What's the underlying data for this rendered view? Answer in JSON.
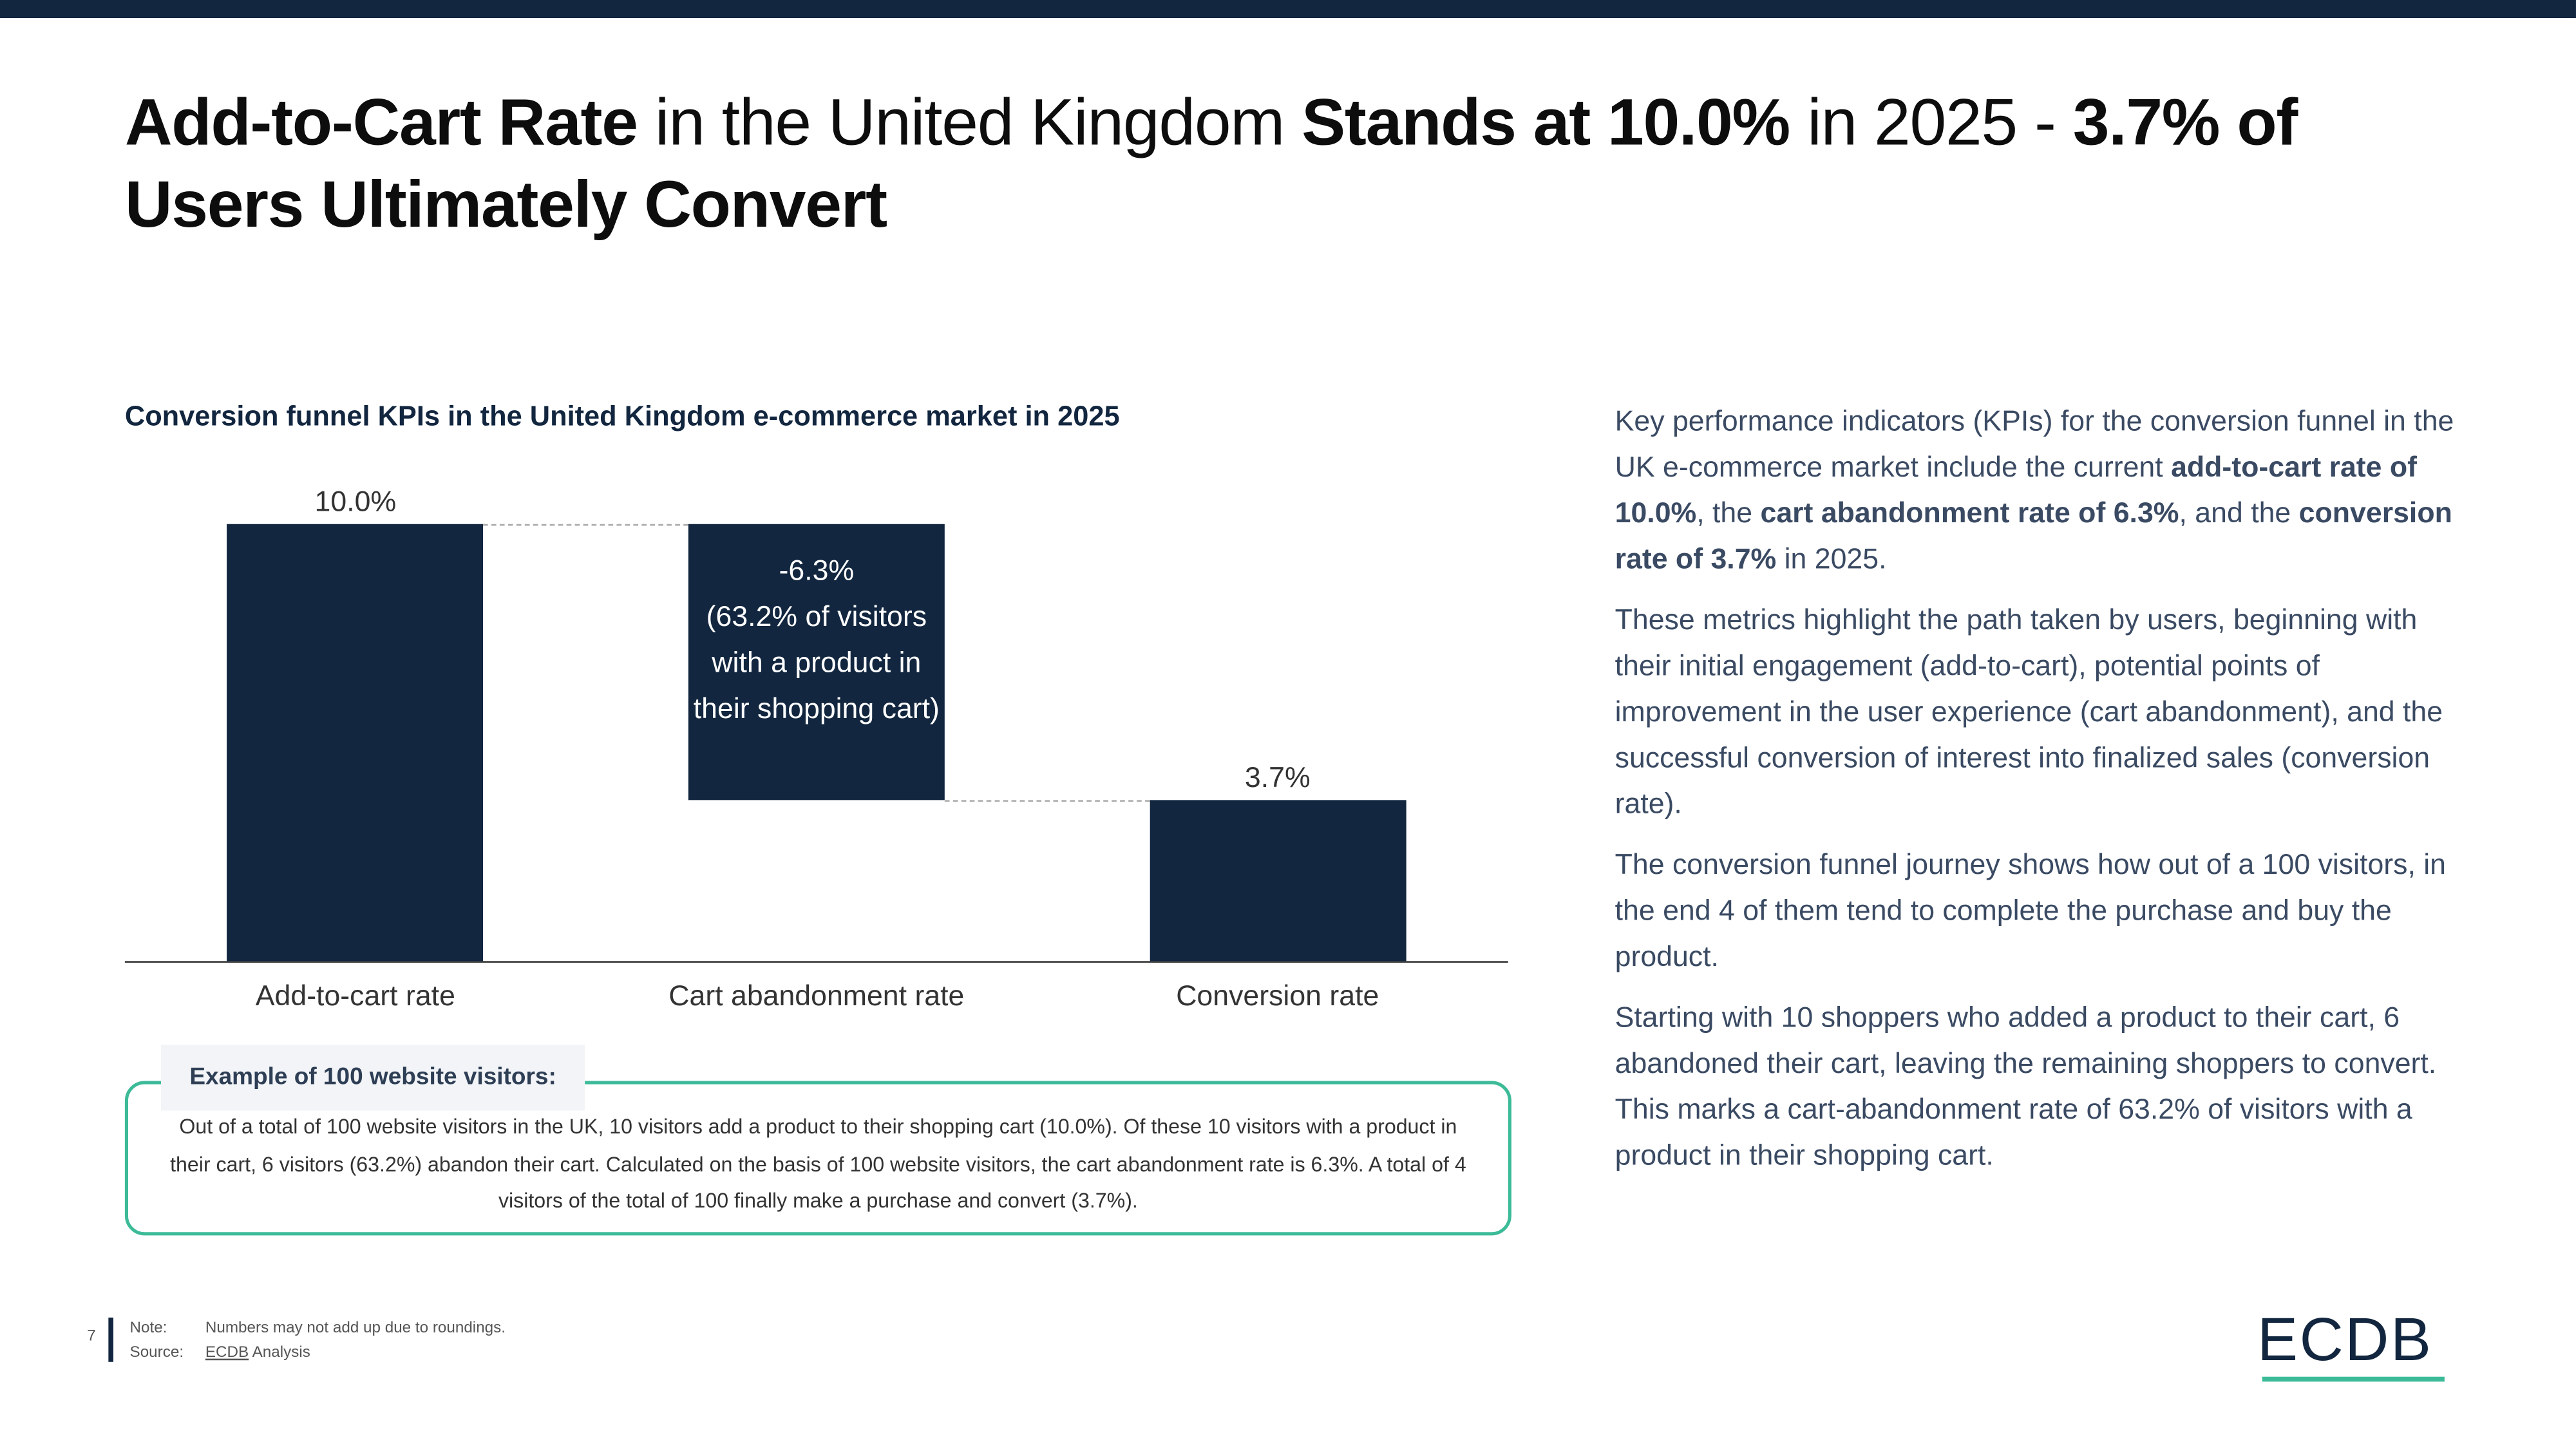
{
  "header": {
    "title": [
      "Add-to-Cart Rate",
      " in the United Kingdom ",
      "Stands at 10.0%",
      " in 2025 - ",
      "3.7% of Users Ultimately Convert"
    ]
  },
  "chart_data": {
    "type": "waterfall",
    "title": "Conversion funnel KPIs in the United Kingdom e-commerce market in 2025",
    "categories": [
      "Add-to-cart rate",
      "Cart abandonment rate",
      "Conversion rate"
    ],
    "values": [
      10.0,
      -6.3,
      3.7
    ],
    "value_labels": [
      "10.0%",
      "-6.3%",
      "3.7%"
    ],
    "annotations": [
      "(63.2% of visitors with a product in their shopping cart)"
    ],
    "color": "#12263f",
    "ylim": [
      0,
      10
    ]
  },
  "example": {
    "title": "Example of 100 website visitors:",
    "text": "Out of a total of 100 website visitors in the UK, 10 visitors add a product to their shopping cart (10.0%). Of these 10 visitors with a product in their cart, 6 visitors (63.2%) abandon their cart. Calculated on the basis of 100 website visitors, the cart abandonment rate is 6.3%. A total of 4 visitors of the total of 100 finally make a purchase and convert (3.7%)."
  },
  "body": {
    "paragraphs": [
      [
        "Key performance indicators (KPIs) for the conversion funnel in the UK e-commerce market include the current ",
        "add-to-cart rate of 10.0%",
        ", the ",
        "cart abandonment rate of 6.3%",
        ", and the ",
        "conversion rate of 3.7%",
        " in 2025."
      ],
      "These metrics highlight the path taken by users, beginning with their initial engagement (add-to-cart), potential points of improvement in the user experience (cart abandonment), and the successful conversion of interest into finalized sales (conversion rate).",
      "The conversion funnel journey shows how out of a 100 visitors, in the end 4 of them tend to complete the purchase and buy the product.",
      "Starting with 10 shoppers who added a product to their cart, 6 abandoned their cart, leaving the remaining shoppers to convert. This marks a cart-abandonment rate of 63.2% of visitors with a product in their shopping cart."
    ]
  },
  "footer": {
    "page": 7,
    "note_label": "Note:",
    "note": "Numbers may not add up due to roundings.",
    "source_label": "Source:",
    "source": [
      "ECDB",
      " Analysis"
    ]
  },
  "logo": {
    "text": "ECDB"
  }
}
